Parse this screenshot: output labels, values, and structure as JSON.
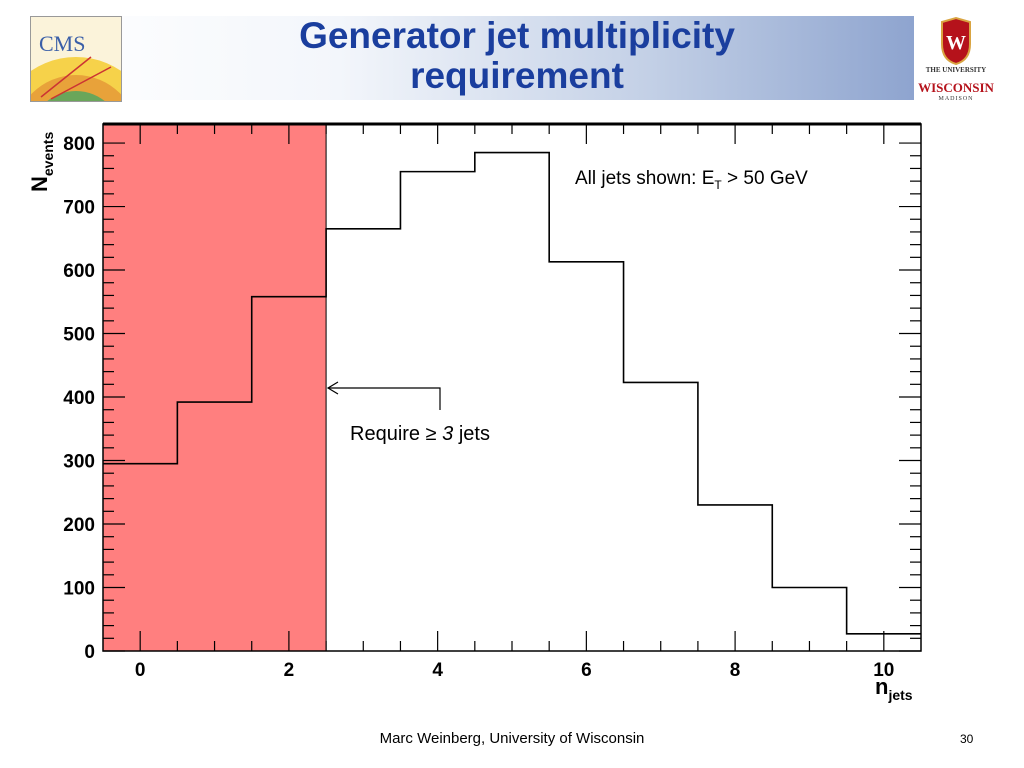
{
  "slide": {
    "title_line1": "Generator jet multiplicity",
    "title_line2": "requirement",
    "footer": "Marc Weinberg, University of Wisconsin",
    "page_number": "30"
  },
  "logos": {
    "cms_text": "CMS",
    "uw_line1": "THE UNIVERSITY",
    "uw_of": "of",
    "uw_line2": "WISCONSIN",
    "uw_line3": "MADISON"
  },
  "colors": {
    "title": "#1a3e9e",
    "shaded_region": "#ff7f7f",
    "histogram_line": "#000000"
  },
  "chart_data": {
    "type": "bar",
    "style": "step-histogram",
    "x_bin_centers": [
      0,
      1,
      2,
      3,
      4,
      5,
      6,
      7,
      8,
      9,
      10
    ],
    "values": [
      295,
      392,
      558,
      665,
      755,
      785,
      613,
      423,
      230,
      100,
      27
    ],
    "xlim": [
      -0.5,
      10.5
    ],
    "ylim": [
      0,
      830
    ],
    "x_ticks": [
      0,
      2,
      4,
      6,
      8,
      10
    ],
    "y_ticks": [
      0,
      100,
      200,
      300,
      400,
      500,
      600,
      700,
      800
    ],
    "xlabel_main": "n",
    "xlabel_sub": "jets",
    "ylabel_main": "N",
    "ylabel_sub": "events",
    "shaded_region": {
      "x_from": -0.5,
      "x_to": 2.5
    },
    "annotations": {
      "et_text": "All jets shown: E",
      "et_sub": "T",
      "et_rest": " > 50 GeV",
      "require_prefix": "Require ≥ ",
      "require_number": "3",
      "require_suffix": " jets"
    },
    "grid": false
  }
}
